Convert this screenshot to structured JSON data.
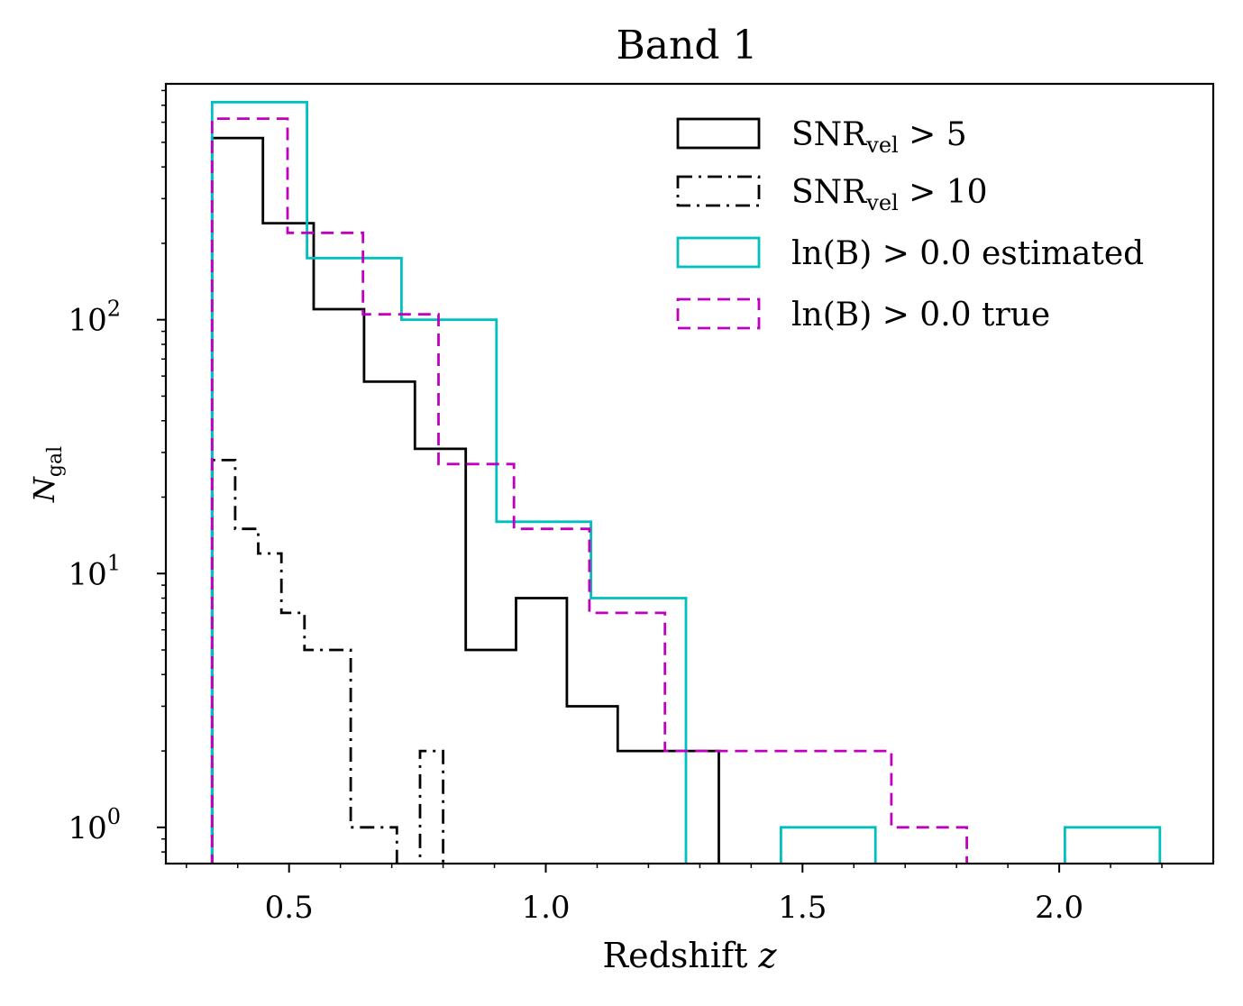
{
  "chart_data": {
    "type": "histogram",
    "title": "Band 1",
    "xlabel": "Redshift",
    "xlabel_var": "z",
    "ylabel_base": "N",
    "ylabel_sub": "gal",
    "xlim": [
      0.26,
      2.3
    ],
    "ylim": [
      0.72,
      850
    ],
    "yscale": "log",
    "x_ticks": [
      {
        "value": 0.5,
        "label": "0.5"
      },
      {
        "value": 1.0,
        "label": "1.0"
      },
      {
        "value": 1.5,
        "label": "1.5"
      },
      {
        "value": 2.0,
        "label": "2.0"
      }
    ],
    "y_ticks": [
      {
        "value": 1,
        "base": "10",
        "exp": "0"
      },
      {
        "value": 10,
        "base": "10",
        "exp": "1"
      },
      {
        "value": 100,
        "base": "10",
        "exp": "2"
      }
    ],
    "legend_position": "top-right",
    "series": [
      {
        "name": "snr5",
        "legend_main": "SNR",
        "legend_sub": "vel",
        "legend_rest": " > 5",
        "color": "#000000",
        "dash": "",
        "edges": [
          0.35,
          0.449,
          0.548,
          0.646,
          0.745,
          0.844,
          0.942,
          1.041,
          1.14,
          1.238,
          1.337
        ],
        "counts": [
          520,
          240,
          110,
          57,
          31,
          5,
          8,
          3,
          2,
          2
        ]
      },
      {
        "name": "snr10",
        "legend_main": "SNR",
        "legend_sub": "vel",
        "legend_rest": " > 10",
        "color": "#000000",
        "dash": "16,7,3,7",
        "edges": [
          0.35,
          0.395,
          0.44,
          0.485,
          0.53,
          0.575,
          0.62,
          0.665,
          0.71,
          0.755,
          0.8
        ],
        "counts": [
          28,
          15,
          12,
          7,
          5,
          5,
          1,
          1,
          0,
          2
        ]
      },
      {
        "name": "lnB-estimated",
        "legend_main": "ln(B) > 0.0 estimated",
        "legend_sub": "",
        "legend_rest": "",
        "color": "#00bfbf",
        "dash": "",
        "edges": [
          0.35,
          0.535,
          0.719,
          0.904,
          1.088,
          1.273,
          1.458,
          1.642,
          1.827,
          2.011,
          2.196
        ],
        "counts": [
          720,
          175,
          100,
          16,
          8,
          0,
          1,
          0,
          0,
          1
        ]
      },
      {
        "name": "lnB-true",
        "legend_main": "ln(B) > 0.0 true",
        "legend_sub": "",
        "legend_rest": "",
        "color": "#bf00bf",
        "dash": "14,8",
        "edges": [
          0.35,
          0.497,
          0.644,
          0.791,
          0.938,
          1.085,
          1.232,
          1.379,
          1.526,
          1.673,
          1.82
        ],
        "counts": [
          620,
          220,
          105,
          27,
          15,
          7,
          2,
          2,
          2,
          1
        ]
      }
    ]
  }
}
